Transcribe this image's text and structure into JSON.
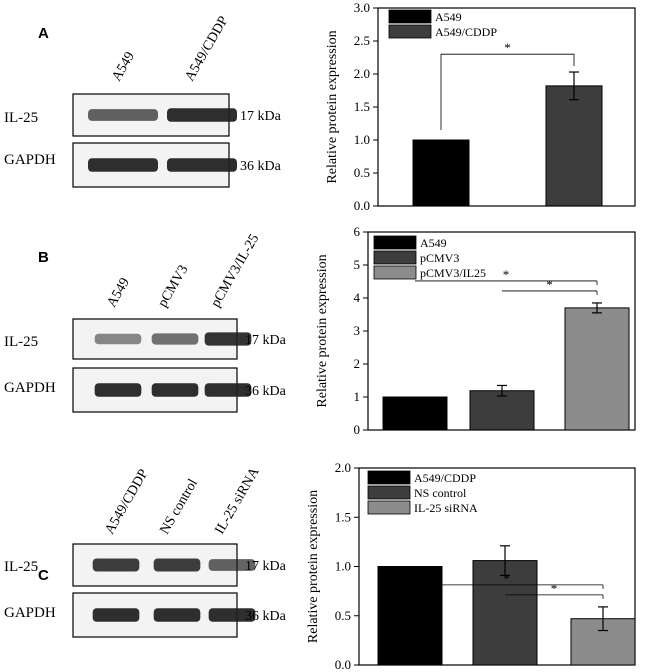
{
  "colors": {
    "series_1": "#000000",
    "series_2": "#3d3d3d",
    "series_3": "#8c8c8c",
    "band": "#1e1e1e",
    "blot_bg": "#f3f3f3"
  },
  "panels": [
    {
      "letter": "A",
      "blot": {
        "lanes": [
          "A549",
          "A549/CDDP"
        ],
        "rows": [
          {
            "protein": "IL-25",
            "size": "17 kDa",
            "intensities": [
              0.55,
              0.9
            ]
          },
          {
            "protein": "GAPDH",
            "size": "36 kDa",
            "intensities": [
              0.9,
              0.9
            ]
          }
        ]
      },
      "chart_data": {
        "type": "bar",
        "categories": [
          "A549",
          "A549/CDDP"
        ],
        "values": [
          1.0,
          1.82
        ],
        "errors": [
          0,
          0.21
        ],
        "title": "",
        "xlabel": "",
        "ylabel": "Relative protein expression",
        "ylim": [
          0,
          3.0
        ],
        "yticks": [
          "0.0",
          "0.5",
          "1.0",
          "1.5",
          "2.0",
          "2.5",
          "3.0"
        ],
        "legend": [
          "A549",
          "A549/CDDP"
        ],
        "legend_position": "top-left",
        "significance": [
          {
            "from": 0,
            "to": 1,
            "label": "*"
          }
        ]
      }
    },
    {
      "letter": "B",
      "blot": {
        "lanes": [
          "A549",
          "pCMV3",
          "pCMV3/IL-25"
        ],
        "rows": [
          {
            "protein": "IL-25",
            "size": "17 kDa",
            "intensities": [
              0.3,
              0.45,
              0.85
            ]
          },
          {
            "protein": "GAPDH",
            "size": "36 kDa",
            "intensities": [
              0.9,
              0.9,
              0.9
            ]
          }
        ]
      },
      "chart_data": {
        "type": "bar",
        "categories": [
          "A549",
          "pCMV3",
          "pCMV3/IL25"
        ],
        "values": [
          1.0,
          1.19,
          3.7
        ],
        "errors": [
          0,
          0.16,
          0.15
        ],
        "title": "",
        "xlabel": "",
        "ylabel": "Relative protein expression",
        "ylim": [
          0,
          6
        ],
        "yticks": [
          "0",
          "1",
          "2",
          "3",
          "4",
          "5",
          "6"
        ],
        "legend": [
          "A549",
          "pCMV3",
          "pCMV3/IL25"
        ],
        "legend_position": "top-left",
        "significance": [
          {
            "from": 0,
            "to": 2,
            "label": "*"
          },
          {
            "from": 1,
            "to": 2,
            "label": "*"
          }
        ]
      }
    },
    {
      "letter": "C",
      "blot": {
        "lanes": [
          "A549/CDDP",
          "NS control",
          "IL-25 siRNA"
        ],
        "rows": [
          {
            "protein": "IL-25",
            "size": "17 kDa",
            "intensities": [
              0.8,
              0.8,
              0.55
            ]
          },
          {
            "protein": "GAPDH",
            "size": "36 kDa",
            "intensities": [
              0.9,
              0.9,
              0.9
            ]
          }
        ]
      },
      "chart_data": {
        "type": "bar",
        "categories": [
          "A549/CDDP",
          "NS control",
          "IL-25 siRNA"
        ],
        "values": [
          1.0,
          1.06,
          0.47
        ],
        "errors": [
          0,
          0.15,
          0.12
        ],
        "title": "",
        "xlabel": "",
        "ylabel": "Relative protein expression",
        "ylim": [
          0,
          2.0
        ],
        "yticks": [
          "0.0",
          "0.5",
          "1.0",
          "1.5",
          "2.0"
        ],
        "legend": [
          "A549/CDDP",
          "NS control",
          "IL-25 siRNA"
        ],
        "legend_position": "top-left",
        "significance": [
          {
            "from": 0,
            "to": 2,
            "label": "*"
          },
          {
            "from": 1,
            "to": 2,
            "label": "*"
          }
        ]
      }
    }
  ]
}
